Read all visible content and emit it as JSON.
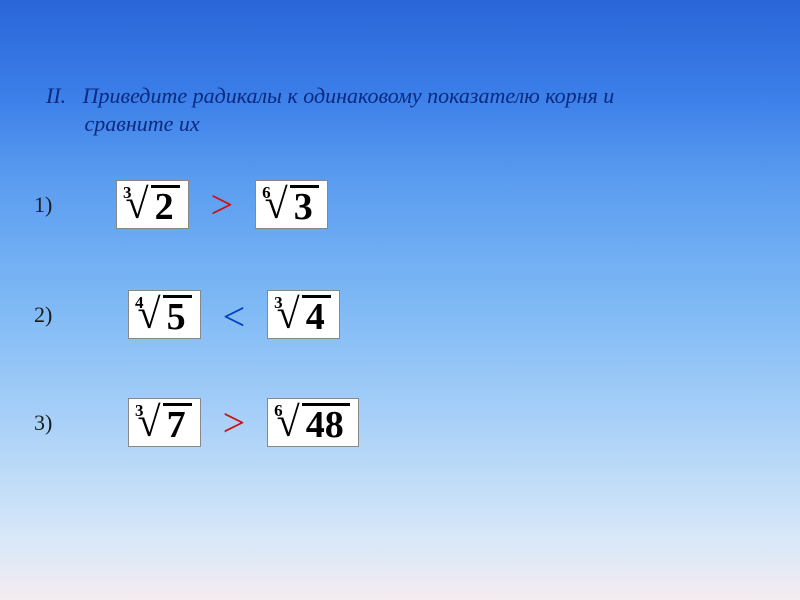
{
  "title": {
    "numeral": "II.",
    "line1": "Приведите радикалы к одинаковому показателю корня и",
    "line2": "сравните их",
    "color": "#0a2a80",
    "fontsize": 22
  },
  "background": {
    "gradient_top": "#2a65d8",
    "gradient_bottom": "#f5ecf0"
  },
  "rows": [
    {
      "enum": "1)",
      "left": {
        "index": "3",
        "radicand": "2"
      },
      "comparator": {
        "symbol": ">",
        "color": "#d01010",
        "fontsize": 40
      },
      "right": {
        "index": "6",
        "radicand": "3"
      }
    },
    {
      "enum": "2)",
      "left": {
        "index": "4",
        "radicand": "5"
      },
      "comparator": {
        "symbol": "<",
        "color": "#0540c0",
        "fontsize": 40
      },
      "right": {
        "index": "3",
        "radicand": "4"
      }
    },
    {
      "enum": "3)",
      "left": {
        "index": "3",
        "radicand": "7"
      },
      "comparator": {
        "symbol": ">",
        "color": "#d01010",
        "fontsize": 40
      },
      "right": {
        "index": "6",
        "radicand": "48"
      }
    }
  ],
  "radical_box": {
    "bg": "#ffffff",
    "border": "#888888",
    "radicand_fontsize": 38,
    "index_fontsize": 17
  },
  "enum_style": {
    "fontsize": 22,
    "color": "#1b1b1b"
  }
}
